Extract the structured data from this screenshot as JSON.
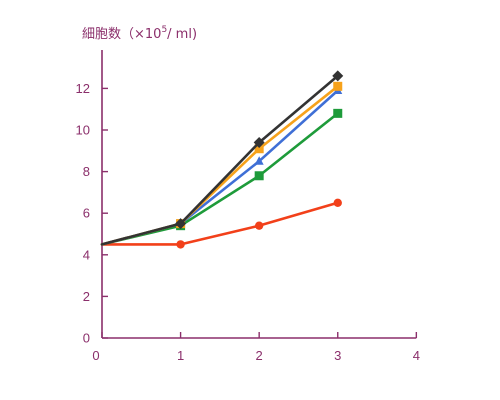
{
  "chart_data": {
    "type": "line",
    "ylabel_main": "細胞数（×10",
    "ylabel_sup": "5",
    "ylabel_tail": "/ ml)",
    "x_ticks": [
      0,
      1,
      2,
      3,
      4
    ],
    "y_ticks": [
      0,
      2,
      4,
      6,
      8,
      10,
      12
    ],
    "xlim": [
      0,
      4
    ],
    "ylim": [
      0,
      13.5
    ],
    "grid": false,
    "legend": "none",
    "series": [
      {
        "color": "#f2401a",
        "marker": "circle",
        "x": [
          0,
          1,
          2,
          3
        ],
        "y": [
          4.5,
          4.5,
          5.4,
          6.5
        ]
      },
      {
        "color": "#1e9b3a",
        "marker": "square",
        "x": [
          0,
          1,
          2,
          3
        ],
        "y": [
          4.5,
          5.4,
          7.8,
          10.8
        ]
      },
      {
        "color": "#3f6fd6",
        "marker": "triangle",
        "x": [
          0,
          1,
          2,
          3
        ],
        "y": [
          4.5,
          5.5,
          8.5,
          11.9
        ]
      },
      {
        "color": "#f7a21b",
        "marker": "square",
        "x": [
          0,
          1,
          2,
          3
        ],
        "y": [
          4.5,
          5.5,
          9.1,
          12.1
        ]
      },
      {
        "color": "#333333",
        "marker": "diamond",
        "x": [
          0,
          1,
          2,
          3
        ],
        "y": [
          4.5,
          5.5,
          9.4,
          12.6
        ]
      }
    ]
  }
}
